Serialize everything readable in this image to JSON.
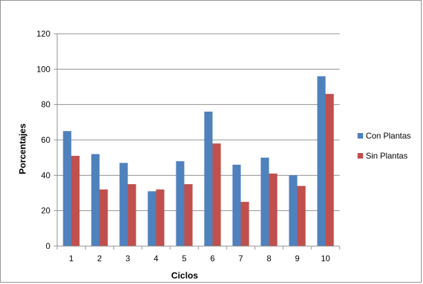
{
  "chart_data": {
    "type": "bar",
    "categories": [
      "1",
      "2",
      "3",
      "4",
      "5",
      "6",
      "7",
      "8",
      "9",
      "10"
    ],
    "series": [
      {
        "name": "Con Plantas",
        "color": "#4F81BD",
        "values": [
          65,
          52,
          47,
          31,
          48,
          76,
          46,
          50,
          40,
          96
        ]
      },
      {
        "name": "Sin Plantas",
        "color": "#C0504D",
        "values": [
          51,
          32,
          35,
          32,
          35,
          58,
          25,
          41,
          34,
          86
        ]
      }
    ],
    "xlabel": "Ciclos",
    "ylabel": "Porcentajes",
    "ylim": [
      0,
      120
    ],
    "yticks": [
      0,
      20,
      40,
      60,
      80,
      100,
      120
    ],
    "grid": true,
    "legend": "right"
  }
}
